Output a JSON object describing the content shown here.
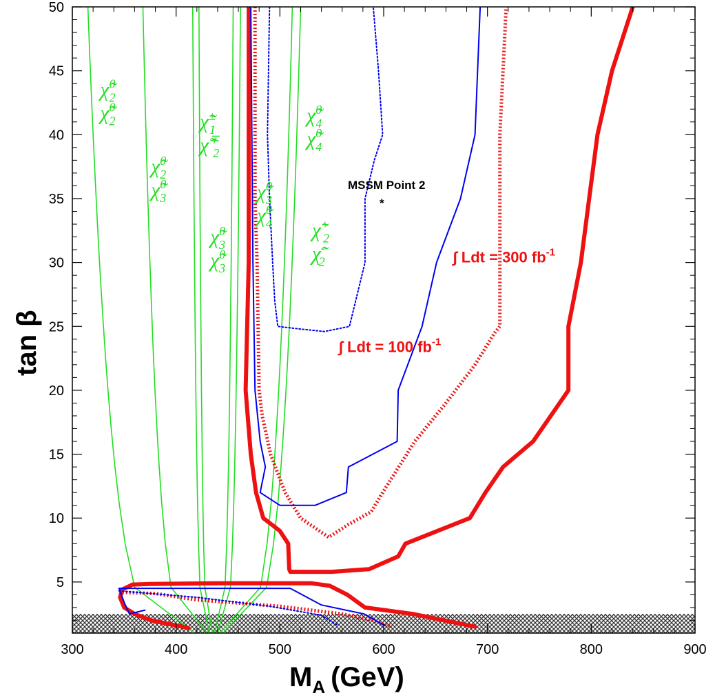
{
  "chart_data": {
    "type": "line",
    "xlabel": "M",
    "xlabel_sub": "A",
    "xlabel_unit": "(GeV)",
    "ylabel": "tan β",
    "xlim": [
      300,
      900
    ],
    "ylim": [
      1,
      50
    ],
    "x_ticks": [
      300,
      400,
      500,
      600,
      700,
      800,
      900
    ],
    "y_ticks": [
      5,
      10,
      15,
      20,
      25,
      30,
      35,
      40,
      45,
      50
    ],
    "excluded_band": {
      "y_from": 1,
      "y_to": 2.5,
      "pattern": "hatched"
    },
    "colors": {
      "green": "#22dd22",
      "blue": "#0000ee",
      "red": "#ee1111",
      "grey": "#555555"
    },
    "series": [
      {
        "id": "red-300-thick",
        "color": "#ee1111",
        "style": "thick-solid",
        "points": [
          [
            470,
            50
          ],
          [
            470,
            30
          ],
          [
            467,
            20
          ],
          [
            472,
            15
          ],
          [
            477,
            12
          ],
          [
            484,
            10
          ],
          [
            500,
            9
          ],
          [
            508,
            8
          ],
          [
            509,
            6
          ],
          [
            510,
            5.8
          ],
          [
            550,
            5.8
          ],
          [
            586,
            6
          ],
          [
            614,
            7
          ],
          [
            621,
            8
          ],
          [
            683,
            10
          ],
          [
            698,
            12
          ],
          [
            715,
            14
          ],
          [
            744,
            16
          ],
          [
            778,
            20
          ],
          [
            778,
            25
          ],
          [
            790,
            30
          ],
          [
            798,
            35
          ],
          [
            806,
            40
          ],
          [
            820,
            45
          ],
          [
            840,
            50
          ]
        ]
      },
      {
        "id": "red-300-lower",
        "color": "#ee1111",
        "style": "thick-solid",
        "points": [
          [
            358,
            4.8
          ],
          [
            375,
            4.85
          ],
          [
            440,
            4.9
          ],
          [
            530,
            4.9
          ],
          [
            548,
            4.7
          ],
          [
            565,
            4
          ],
          [
            582,
            3
          ],
          [
            628,
            2.5
          ],
          [
            688,
            1.5
          ]
        ]
      },
      {
        "id": "red-300-lower-tail",
        "color": "#ee1111",
        "style": "thick-solid",
        "points": [
          [
            358,
            4.8
          ],
          [
            348,
            4.4
          ],
          [
            346,
            3.8
          ],
          [
            350,
            3
          ],
          [
            360,
            2.5
          ],
          [
            376,
            2
          ],
          [
            412,
            1.4
          ]
        ]
      },
      {
        "id": "red-100-dotted",
        "color": "#ee1111",
        "style": "thick-dotted",
        "points": [
          [
            476,
            50
          ],
          [
            476,
            35
          ],
          [
            478,
            30
          ],
          [
            479,
            25
          ],
          [
            480,
            20
          ],
          [
            483,
            18
          ],
          [
            491,
            15
          ],
          [
            505,
            12
          ],
          [
            520,
            10
          ],
          [
            547,
            8.5
          ],
          [
            566,
            9.5
          ],
          [
            588,
            10.5
          ],
          [
            599,
            12
          ],
          [
            630,
            16
          ],
          [
            660,
            19
          ],
          [
            688,
            22
          ],
          [
            707,
            24.5
          ],
          [
            712,
            25
          ],
          [
            712,
            30
          ],
          [
            712,
            40
          ],
          [
            718,
            50
          ]
        ]
      },
      {
        "id": "red-100-dotted-lower",
        "color": "#ee1111",
        "style": "thick-dotted",
        "points": [
          [
            345,
            4.2
          ],
          [
            380,
            4.1
          ],
          [
            420,
            3.6
          ],
          [
            500,
            3.1
          ],
          [
            560,
            2.5
          ],
          [
            590,
            2.0
          ],
          [
            608,
            1.5
          ]
        ]
      },
      {
        "id": "blue-solid",
        "color": "#0000ee",
        "style": "solid",
        "points": [
          [
            472,
            50
          ],
          [
            474,
            30
          ],
          [
            476,
            20
          ],
          [
            481,
            16
          ],
          [
            486,
            14
          ],
          [
            481,
            12
          ],
          [
            500,
            11
          ],
          [
            534,
            11
          ],
          [
            564,
            12
          ],
          [
            566,
            14
          ],
          [
            613,
            16
          ],
          [
            614,
            20
          ],
          [
            637,
            25
          ],
          [
            651,
            30
          ],
          [
            674,
            35
          ],
          [
            688,
            40
          ],
          [
            693,
            50
          ]
        ]
      },
      {
        "id": "blue-solid-lower",
        "color": "#0000ee",
        "style": "solid",
        "points": [
          [
            345,
            4.5
          ],
          [
            510,
            4.5
          ],
          [
            540,
            3.2
          ],
          [
            581,
            2.5
          ],
          [
            601,
            1.6
          ]
        ]
      },
      {
        "id": "blue-solid-lower-tail",
        "color": "#0000ee",
        "style": "solid",
        "points": [
          [
            345,
            4.5
          ],
          [
            350,
            3.4
          ],
          [
            355,
            2.5
          ],
          [
            370,
            2.8
          ]
        ]
      },
      {
        "id": "blue-dotted-point2",
        "color": "#0000ee",
        "style": "dotted",
        "points": [
          [
            490,
            50
          ],
          [
            488,
            40
          ],
          [
            490,
            35
          ],
          [
            493,
            30
          ],
          [
            495,
            27
          ],
          [
            498,
            25
          ],
          [
            519,
            24.8
          ],
          [
            543,
            24.6
          ],
          [
            567,
            25
          ],
          [
            582,
            30
          ],
          [
            582,
            35
          ],
          [
            591,
            38
          ],
          [
            599,
            40
          ],
          [
            595,
            45
          ],
          [
            590,
            50
          ]
        ]
      },
      {
        "id": "blue-dotted-lower",
        "color": "#0000ee",
        "style": "dotted",
        "points": [
          [
            345,
            4.3
          ],
          [
            420,
            3.8
          ],
          [
            490,
            3.1
          ],
          [
            540,
            2.4
          ],
          [
            556,
            1.6
          ]
        ]
      }
    ],
    "contours_green": [
      {
        "x_vert": 315,
        "x_min": 418
      },
      {
        "x_vert": 368,
        "x_min": 430
      },
      {
        "x_vert": 416,
        "x_min": 432
      },
      {
        "x_vert": 422,
        "x_min": 435
      },
      {
        "x_vert": 455,
        "x_min": 437
      },
      {
        "x_vert": 462,
        "x_min": 440
      },
      {
        "x_vert": 512,
        "x_min": 442
      },
      {
        "x_vert": 520,
        "x_min": 445
      }
    ],
    "annotations": [
      {
        "name": "label-chi2-chi2",
        "lines": [
          "χ̃",
          "χ̃"
        ],
        "subs": [
          "2",
          "2"
        ],
        "sups": [
          "0",
          "0"
        ],
        "x": 336,
        "y": 43
      },
      {
        "name": "label-chi2-chi3",
        "lines": [
          "χ̃",
          "χ̃"
        ],
        "subs": [
          "2",
          "3"
        ],
        "sups": [
          "0",
          "0"
        ],
        "x": 385,
        "y": 37
      },
      {
        "name": "label-chi1pm-chi2mp",
        "lines": [
          "χ̃",
          "χ̃"
        ],
        "subs": [
          "1",
          "2"
        ],
        "sups": [
          "±",
          "∓"
        ],
        "x": 432,
        "y": 40.5
      },
      {
        "name": "label-chi3-chi3",
        "lines": [
          "χ̃",
          "χ̃"
        ],
        "subs": [
          "3",
          "3"
        ],
        "sups": [
          "0",
          "0"
        ],
        "x": 442,
        "y": 31.5
      },
      {
        "name": "label-chi3-chi4",
        "lines": [
          "χ̃",
          "χ̃"
        ],
        "subs": [
          "3",
          "4"
        ],
        "sups": [
          "0",
          "0"
        ],
        "x": 487,
        "y": 35
      },
      {
        "name": "label-chi4-chi4",
        "lines": [
          "χ̃",
          "χ̃"
        ],
        "subs": [
          "4",
          "4"
        ],
        "sups": [
          "0",
          "0"
        ],
        "x": 535,
        "y": 41
      },
      {
        "name": "label-chi2p-chi2m",
        "lines": [
          "χ̃",
          "χ̃"
        ],
        "subs": [
          "2",
          "2"
        ],
        "sups": [
          "+",
          "-"
        ],
        "x": 540,
        "y": 32
      }
    ],
    "lumi_labels": [
      {
        "name": "lumi-300-label",
        "text": "∫ Ldt = 300 fb",
        "sup": "-1",
        "x": 700,
        "y": 30
      },
      {
        "name": "lumi-100-label",
        "text": "∫ Ldt = 100 fb",
        "sup": "-1",
        "x": 590,
        "y": 23
      }
    ],
    "point": {
      "name": "mssm-point-2",
      "label": "MSSM Point 2",
      "marker": "*",
      "x": 600,
      "y": 35
    }
  }
}
